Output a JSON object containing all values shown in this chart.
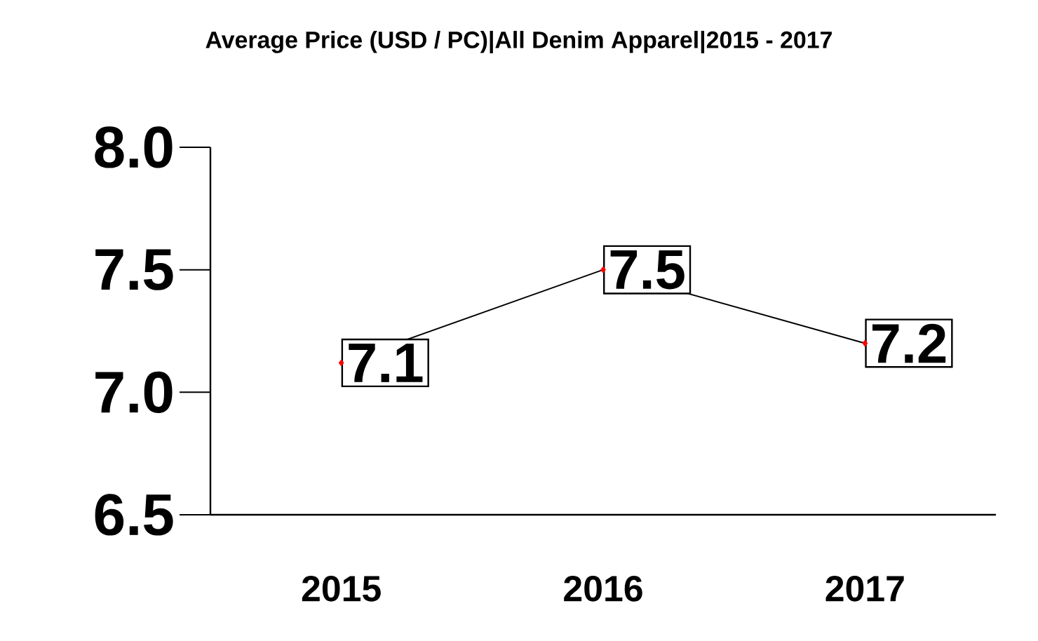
{
  "chart_data": {
    "type": "line",
    "title": "Average Price (USD / PC)|All Denim Apparel|2015 - 2017",
    "categories": [
      "2015",
      "2016",
      "2017"
    ],
    "series": [
      {
        "color": "#000000",
        "values": [
          7.12,
          7.5,
          7.2
        ],
        "value_labels": [
          "7.1",
          "7.5",
          "7.2"
        ]
      }
    ],
    "ylim": [
      6.5,
      8.0
    ],
    "yticks": [
      {
        "value": 6.5,
        "label": "6.5"
      },
      {
        "value": 7.0,
        "label": "7.0"
      },
      {
        "value": 7.5,
        "label": "7.5"
      },
      {
        "value": 8.0,
        "label": "8.0"
      }
    ],
    "marker": "diamond",
    "grid": false
  }
}
